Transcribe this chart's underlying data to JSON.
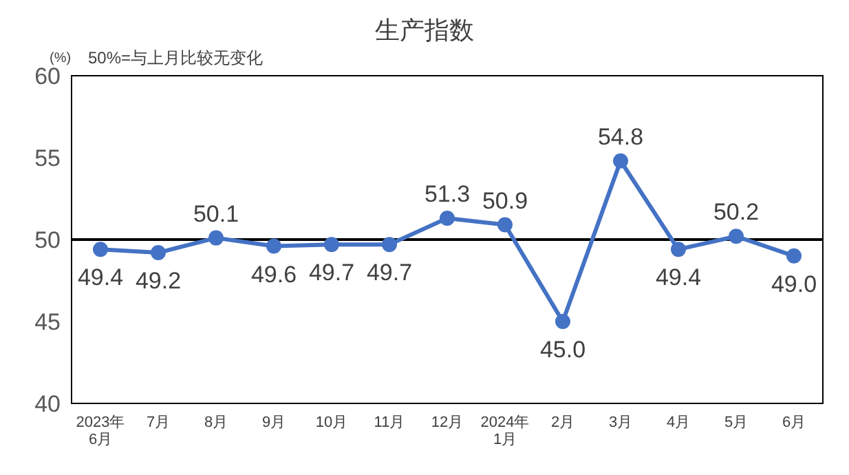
{
  "chart_data": {
    "type": "line",
    "title": "生产指数",
    "ylabel": "(%)",
    "annotations": [
      "50%=与上月比较无变化"
    ],
    "categories": [
      "2023年\n6月",
      "7月",
      "8月",
      "9月",
      "10月",
      "11月",
      "12月",
      "2024年\n1月",
      "2月",
      "3月",
      "4月",
      "5月",
      "6月"
    ],
    "series": [
      {
        "color": "#4472c4",
        "values": [
          49.4,
          49.2,
          50.1,
          49.6,
          49.7,
          49.7,
          51.3,
          50.9,
          45.0,
          54.8,
          49.4,
          50.2,
          49.0
        ],
        "value_labels": [
          "49.4",
          "49.2",
          "50.1",
          "49.6",
          "49.7",
          "49.7",
          "51.3",
          "50.9",
          "45.0",
          "54.8",
          "49.4",
          "50.2",
          "49.0"
        ]
      }
    ],
    "ylim": [
      40,
      60
    ],
    "yticks": [
      40,
      45,
      50,
      55,
      60
    ],
    "ref_lines": [
      {
        "axis": "y",
        "value": 50,
        "color": "#000000"
      }
    ],
    "marker": "circle",
    "line_style": "solid",
    "grid": false
  }
}
